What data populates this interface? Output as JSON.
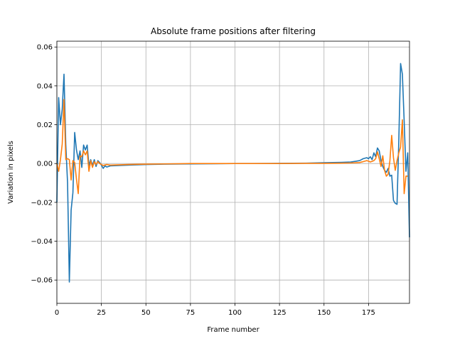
{
  "chart_data": {
    "type": "line",
    "title": "Absolute frame positions after filtering",
    "xlabel": "Frame number",
    "ylabel": "Variation in pixels",
    "xlim": [
      0,
      198
    ],
    "ylim": [
      -0.072,
      0.063
    ],
    "xticks": [
      0,
      25,
      50,
      75,
      100,
      125,
      150,
      175
    ],
    "yticks": [
      -0.06,
      -0.04,
      -0.02,
      0.0,
      0.02,
      0.04,
      0.06
    ],
    "xtick_labels": [
      "0",
      "25",
      "50",
      "75",
      "100",
      "125",
      "150",
      "175"
    ],
    "ytick_labels": [
      "−0.06",
      "−0.04",
      "−0.02",
      "0.00",
      "0.02",
      "0.04",
      "0.06"
    ],
    "grid": true,
    "series": [
      {
        "color": "#1f77b4",
        "points": [
          [
            0,
            -0.02
          ],
          [
            1,
            0.034
          ],
          [
            2,
            0.02
          ],
          [
            3,
            0.028
          ],
          [
            4,
            0.046
          ],
          [
            5,
            0.01
          ],
          [
            6,
            -0.01
          ],
          [
            7,
            -0.061
          ],
          [
            8,
            -0.024
          ],
          [
            9,
            -0.015
          ],
          [
            10,
            0.016
          ],
          [
            11,
            0.007
          ],
          [
            12,
            0.002
          ],
          [
            13,
            0.0065
          ],
          [
            14,
            -0.002
          ],
          [
            15,
            0.0095
          ],
          [
            16,
            0.007
          ],
          [
            17,
            0.0095
          ],
          [
            18,
            -0.001
          ],
          [
            19,
            0.002
          ],
          [
            20,
            -0.001
          ],
          [
            21,
            0.002
          ],
          [
            22,
            -0.0015
          ],
          [
            23,
            0.0015
          ],
          [
            24,
            0.0005
          ],
          [
            25,
            -0.0008
          ],
          [
            26,
            -0.0025
          ],
          [
            27,
            -0.0012
          ],
          [
            28,
            -0.0018
          ],
          [
            30,
            -0.0012
          ],
          [
            35,
            -0.001
          ],
          [
            40,
            -0.0008
          ],
          [
            50,
            -0.0005
          ],
          [
            60,
            -0.0003
          ],
          [
            75,
            -0.0002
          ],
          [
            90,
            -0.0001
          ],
          [
            100,
            0.0
          ],
          [
            110,
            0.0
          ],
          [
            125,
            0.0001
          ],
          [
            140,
            0.0002
          ],
          [
            150,
            0.0004
          ],
          [
            160,
            0.0006
          ],
          [
            165,
            0.0008
          ],
          [
            168,
            0.0012
          ],
          [
            170,
            0.0015
          ],
          [
            172,
            0.0025
          ],
          [
            174,
            0.003
          ],
          [
            175,
            0.0025
          ],
          [
            176,
            0.0035
          ],
          [
            177,
            0.002
          ],
          [
            178,
            0.0055
          ],
          [
            179,
            0.0035
          ],
          [
            180,
            0.008
          ],
          [
            181,
            0.0065
          ],
          [
            182,
            0.0015
          ],
          [
            183,
            -0.0015
          ],
          [
            184,
            -0.0035
          ],
          [
            185,
            -0.0045
          ],
          [
            186,
            -0.0025
          ],
          [
            187,
            -0.0065
          ],
          [
            188,
            -0.006
          ],
          [
            189,
            -0.019
          ],
          [
            190,
            -0.0205
          ],
          [
            191,
            -0.021
          ],
          [
            192,
            0.012
          ],
          [
            193,
            0.0515
          ],
          [
            194,
            0.046
          ],
          [
            195,
            0.022
          ],
          [
            196,
            -0.004
          ],
          [
            197,
            0.0055
          ],
          [
            198,
            -0.038
          ]
        ]
      },
      {
        "color": "#ff7f0e",
        "points": [
          [
            0,
            0.0
          ],
          [
            1,
            -0.004
          ],
          [
            2,
            0.002
          ],
          [
            3,
            0.01
          ],
          [
            4,
            0.033
          ],
          [
            5,
            0.002
          ],
          [
            6,
            0.0025
          ],
          [
            7,
            0.002
          ],
          [
            8,
            -0.0085
          ],
          [
            9,
            0.0015
          ],
          [
            10,
            0.0005
          ],
          [
            11,
            -0.008
          ],
          [
            12,
            -0.0155
          ],
          [
            13,
            0.004
          ],
          [
            14,
            0.0035
          ],
          [
            15,
            0.0065
          ],
          [
            16,
            0.0045
          ],
          [
            17,
            0.0065
          ],
          [
            18,
            -0.004
          ],
          [
            19,
            0.0015
          ],
          [
            20,
            -0.002
          ],
          [
            21,
            0.001
          ],
          [
            22,
            -0.0005
          ],
          [
            23,
            0.001
          ],
          [
            24,
            0.0
          ],
          [
            25,
            -0.0005
          ],
          [
            26,
            -0.001
          ],
          [
            28,
            -0.0005
          ],
          [
            30,
            -0.0008
          ],
          [
            40,
            -0.0005
          ],
          [
            50,
            -0.0003
          ],
          [
            60,
            -0.0002
          ],
          [
            75,
            0.0
          ],
          [
            100,
            0.0
          ],
          [
            125,
            0.0
          ],
          [
            140,
            0.0001
          ],
          [
            150,
            0.0001
          ],
          [
            160,
            0.0002
          ],
          [
            165,
            0.0003
          ],
          [
            170,
            0.0005
          ],
          [
            172,
            0.001
          ],
          [
            174,
            0.0015
          ],
          [
            175,
            0.0012
          ],
          [
            176,
            0.0008
          ],
          [
            178,
            0.0015
          ],
          [
            179,
            0.0025
          ],
          [
            180,
            0.006
          ],
          [
            181,
            0.0025
          ],
          [
            182,
            -0.0015
          ],
          [
            183,
            0.004
          ],
          [
            184,
            -0.0035
          ],
          [
            185,
            -0.0065
          ],
          [
            186,
            -0.0055
          ],
          [
            187,
            0.0015
          ],
          [
            188,
            0.0145
          ],
          [
            189,
            0.003
          ],
          [
            190,
            -0.0035
          ],
          [
            191,
            0.0015
          ],
          [
            192,
            0.0055
          ],
          [
            193,
            0.0085
          ],
          [
            194,
            0.0225
          ],
          [
            195,
            -0.0155
          ],
          [
            196,
            -0.0065
          ],
          [
            197,
            -0.0065
          ]
        ]
      }
    ]
  }
}
